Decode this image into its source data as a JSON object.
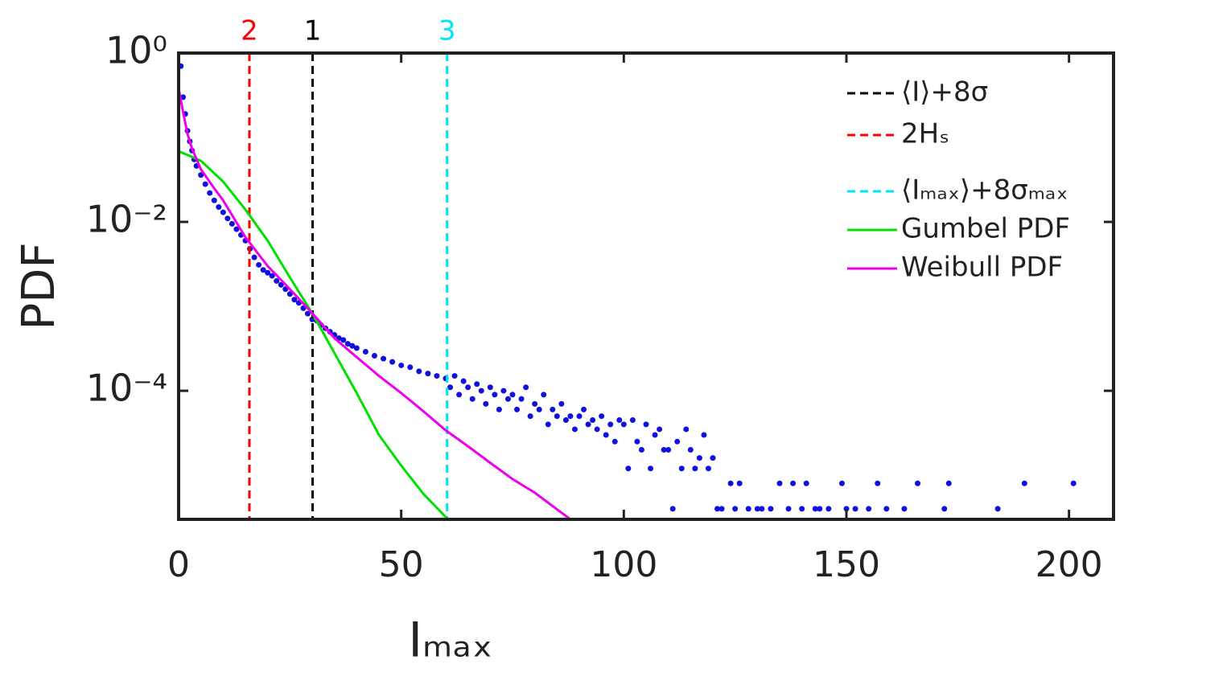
{
  "chart_data": {
    "type": "scatter",
    "xlabel": "Iₘₐₓ",
    "ylabel": "PDF",
    "xlim": [
      0,
      210
    ],
    "ylim": [
      3e-06,
      1
    ],
    "yscale": "log",
    "xticks": [
      0,
      50,
      100,
      150,
      200
    ],
    "yticks": [
      {
        "value": 1,
        "label": "10⁰"
      },
      {
        "value": 0.01,
        "label": "10⁻²"
      },
      {
        "value": 0.0001,
        "label": "10⁻⁴"
      }
    ],
    "legend": "upper right",
    "series": [
      {
        "type": "scatter",
        "color": "#1010e0",
        "x": [
          0.5,
          1,
          1.5,
          2,
          2.5,
          3,
          3.5,
          4,
          5,
          6,
          7,
          8,
          9,
          10,
          11,
          12,
          13,
          14,
          15,
          16,
          17,
          18,
          19,
          20,
          21,
          22,
          23,
          24,
          25,
          26,
          27,
          28,
          29,
          30,
          31,
          32,
          33,
          34,
          35,
          36,
          37,
          38,
          39,
          40,
          42,
          44,
          46,
          48,
          50,
          52,
          54,
          56,
          58,
          60,
          61,
          62,
          63,
          64,
          65,
          66,
          67,
          68,
          69,
          70,
          71,
          72,
          73,
          74,
          75,
          76,
          77,
          78,
          79,
          80,
          81,
          82,
          83,
          84,
          85,
          86,
          87,
          88,
          89,
          90,
          91,
          92,
          93,
          94,
          95,
          96,
          97,
          98,
          99,
          100,
          101,
          102,
          103,
          104,
          105,
          106,
          107,
          108,
          109,
          110,
          111,
          112,
          113,
          114,
          115,
          116,
          117,
          118,
          119,
          120,
          121,
          122,
          124,
          125,
          126,
          128,
          130,
          131,
          133,
          135,
          137,
          138,
          140,
          141,
          143,
          144,
          146,
          149,
          150,
          152,
          155,
          157,
          159,
          163,
          166,
          172,
          173,
          184,
          190,
          201
        ],
        "values": [
          0.7,
          0.3,
          0.19,
          0.12,
          0.09,
          0.07,
          0.055,
          0.046,
          0.036,
          0.028,
          0.022,
          0.018,
          0.015,
          0.013,
          0.011,
          0.0095,
          0.0082,
          0.007,
          0.006,
          0.0048,
          0.0038,
          0.0031,
          0.0027,
          0.0025,
          0.0023,
          0.002,
          0.0018,
          0.0016,
          0.0014,
          0.0012,
          0.0011,
          0.00095,
          0.00082,
          0.0007,
          0.00068,
          0.0006,
          0.00055,
          0.0005,
          0.00046,
          0.00042,
          0.0004,
          0.00036,
          0.00034,
          0.00032,
          0.00029,
          0.00026,
          0.00024,
          0.00022,
          0.0002,
          0.00019,
          0.00017,
          0.00016,
          0.00015,
          0.00014,
          0.00011,
          0.00015,
          9e-05,
          0.00013,
          0.00011,
          8e-05,
          0.00012,
          0.0001,
          7e-05,
          0.00011,
          9e-05,
          6e-05,
          0.0001,
          8e-05,
          9e-05,
          6e-05,
          8e-05,
          0.00011,
          5e-05,
          7e-05,
          6e-05,
          9e-05,
          4e-05,
          6e-05,
          5e-05,
          7e-05,
          4.5e-05,
          5e-05,
          3.5e-05,
          5e-05,
          6e-05,
          4e-05,
          4.5e-05,
          3.5e-05,
          5e-05,
          3e-05,
          4e-05,
          2.5e-05,
          4.5e-05,
          4e-05,
          1.2e-05,
          4.5e-05,
          2.5e-05,
          2e-05,
          4e-05,
          1.2e-05,
          3e-05,
          3.5e-05,
          2e-05,
          2e-05,
          4e-06,
          2.5e-05,
          1.2e-05,
          3.5e-05,
          2e-05,
          1.2e-05,
          1.6e-05,
          3e-05,
          1.2e-05,
          1.6e-05,
          4e-06,
          4e-06,
          8e-06,
          4e-06,
          8e-06,
          4e-06,
          4e-06,
          4e-06,
          4e-06,
          8e-06,
          4e-06,
          8e-06,
          4e-06,
          8e-06,
          4e-06,
          4e-06,
          4e-06,
          8e-06,
          4e-06,
          4e-06,
          4e-06,
          8e-06,
          4e-06,
          4e-06,
          8e-06,
          4e-06,
          8e-06,
          4e-06,
          8e-06,
          8e-06
        ]
      },
      {
        "type": "vline",
        "name": "⟨I⟩+8σ",
        "color": "#000000",
        "x": 30.1,
        "label": "1"
      },
      {
        "type": "vline",
        "name": "2Hₛ",
        "color": "#ff0000",
        "x": 15.9,
        "label": "2"
      },
      {
        "type": "vline",
        "name": "⟨Iₘₐₓ⟩+8σₘₐₓ",
        "color": "#00e5ee",
        "x": 60.3,
        "label": "3"
      },
      {
        "type": "line",
        "name": "Gumbel PDF",
        "color": "#00e000",
        "x": [
          0,
          5,
          10,
          15,
          20,
          25,
          30,
          35,
          40,
          45,
          50,
          55,
          60.5
        ],
        "values": [
          0.069,
          0.053,
          0.03,
          0.014,
          0.006,
          0.0022,
          0.00083,
          0.00028,
          9.4e-05,
          3e-05,
          1.3e-05,
          6e-06,
          3e-06
        ]
      },
      {
        "type": "line",
        "name": "Weibull PDF",
        "color": "#ee00ee",
        "x": [
          0,
          1,
          2,
          3,
          5,
          8,
          10,
          15,
          20,
          25,
          30,
          35,
          40,
          45,
          50,
          55,
          60,
          65,
          70,
          75,
          80,
          88
        ],
        "values": [
          0.38,
          0.2,
          0.11,
          0.074,
          0.042,
          0.025,
          0.018,
          0.0066,
          0.003,
          0.0016,
          0.00083,
          0.00042,
          0.00025,
          0.00015,
          9.4e-05,
          5.7e-05,
          3.4e-05,
          2.2e-05,
          1.4e-05,
          9e-06,
          6.2e-06,
          3e-06
        ]
      }
    ]
  }
}
